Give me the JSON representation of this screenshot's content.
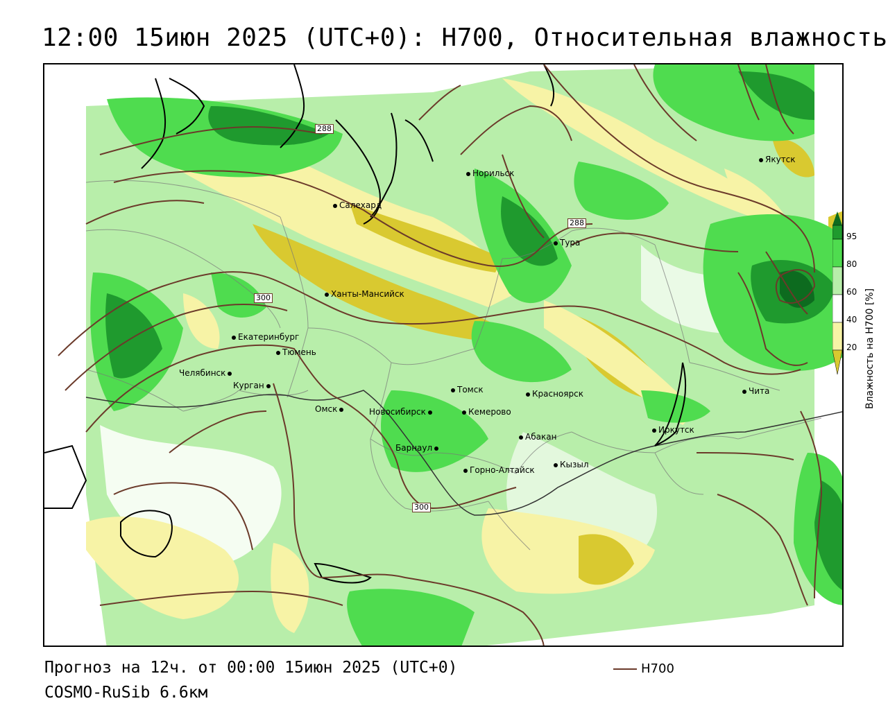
{
  "title": "12:00 15июн 2025 (UTC+0): H700, Относительная влажность",
  "footer": {
    "forecast": "Прогноз на 12ч. от 00:00 15июн 2025 (UTC+0)",
    "model": "COSMO-RuSib 6.6км"
  },
  "legend": {
    "h700_label": "H700"
  },
  "colorbar": {
    "label": "Влажность на H700 [%]",
    "ticks": [
      "95",
      "80",
      "60",
      "40",
      "20"
    ],
    "colors": {
      "dry_dark": "#d9c930",
      "dry_light": "#f7f3a6",
      "neutral": "#ffffff",
      "moist_light": "#b8eeaa",
      "moist_mid": "#4fdc4f",
      "moist_dark": "#1f9a2e",
      "moist_darkest": "#0d6b1f"
    }
  },
  "isolines": {
    "color": "#6b3a2a",
    "labels": [
      "288",
      "288",
      "300",
      "300"
    ]
  },
  "cities": [
    {
      "name": "Якутск"
    },
    {
      "name": "Норильск"
    },
    {
      "name": "Салехард"
    },
    {
      "name": "Тура"
    },
    {
      "name": "Ханты-Мансийск"
    },
    {
      "name": "Екатеринбург"
    },
    {
      "name": "Тюмень"
    },
    {
      "name": "Челябинск"
    },
    {
      "name": "Курган"
    },
    {
      "name": "Омск"
    },
    {
      "name": "Томск"
    },
    {
      "name": "Красноярск"
    },
    {
      "name": "Новосибирск"
    },
    {
      "name": "Кемерово"
    },
    {
      "name": "Абакан"
    },
    {
      "name": "Барнаул"
    },
    {
      "name": "Горно-Алтайск"
    },
    {
      "name": "Кызыл"
    },
    {
      "name": "Иркутск"
    },
    {
      "name": "Чита"
    }
  ]
}
